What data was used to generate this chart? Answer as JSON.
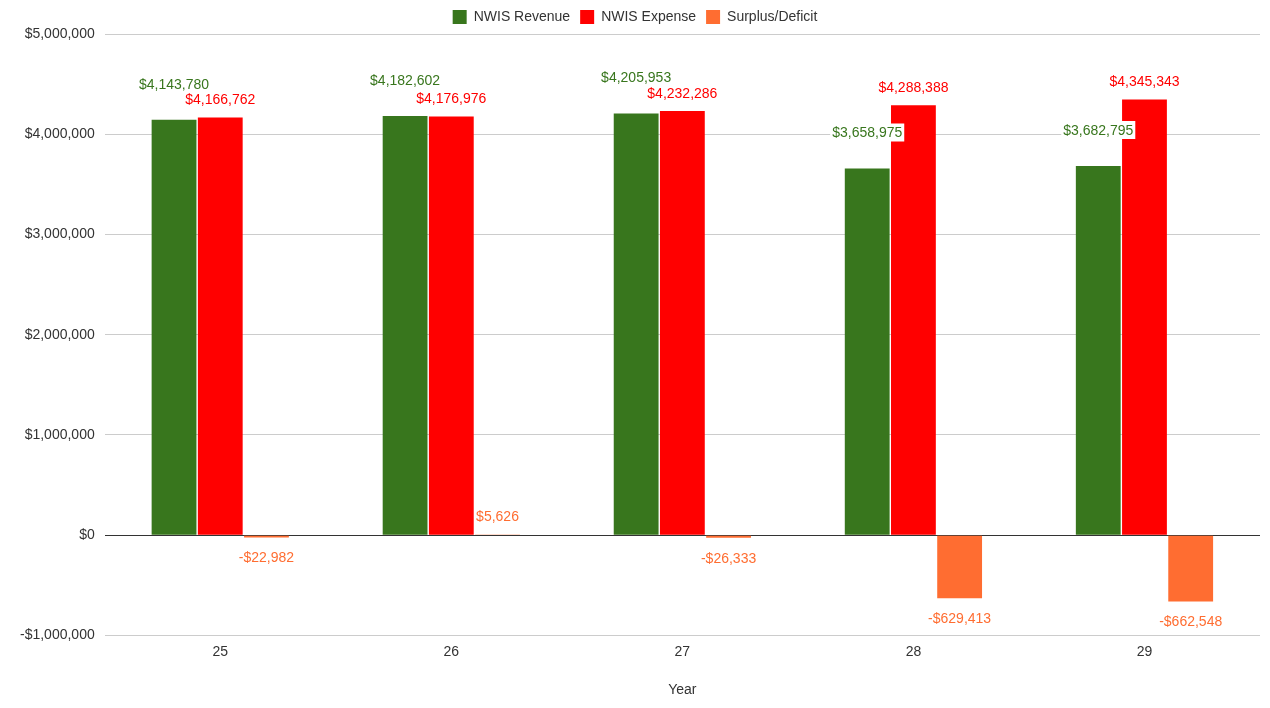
{
  "chart_data": {
    "type": "bar",
    "xlabel": "Year",
    "categories": [
      "25",
      "26",
      "27",
      "28",
      "29"
    ],
    "series": [
      {
        "name": "NWIS Revenue",
        "color": "#38761d",
        "values": [
          4143780,
          4182602,
          4205953,
          3658975,
          3682795
        ],
        "value_labels": [
          "$4,143,780",
          "$4,182,602",
          "$4,205,953",
          "$3,658,975",
          "$3,682,795"
        ]
      },
      {
        "name": "NWIS Expense",
        "color": "#ff0000",
        "values": [
          4166762,
          4176976,
          4232286,
          4288388,
          4345343
        ],
        "value_labels": [
          "$4,166,762",
          "$4,176,976",
          "$4,232,286",
          "$4,288,388",
          "$4,345,343"
        ]
      },
      {
        "name": "Surplus/Deficit",
        "color": "#ff6d31",
        "values": [
          -22982,
          5626,
          -26333,
          -629413,
          -662548
        ],
        "value_labels": [
          "-$22,982",
          "$5,626",
          "-$26,333",
          "-$629,413",
          "-$662,548"
        ]
      }
    ],
    "ylim": [
      -1000000,
      5000000
    ],
    "yticks": [
      {
        "value": -1000000,
        "label": "-$1,000,000"
      },
      {
        "value": 0,
        "label": "$0"
      },
      {
        "value": 1000000,
        "label": "$1,000,000"
      },
      {
        "value": 2000000,
        "label": "$2,000,000"
      },
      {
        "value": 3000000,
        "label": "$3,000,000"
      },
      {
        "value": 4000000,
        "label": "$4,000,000"
      },
      {
        "value": 5000000,
        "label": "$5,000,000"
      }
    ],
    "grid": "y",
    "legend": "top"
  }
}
